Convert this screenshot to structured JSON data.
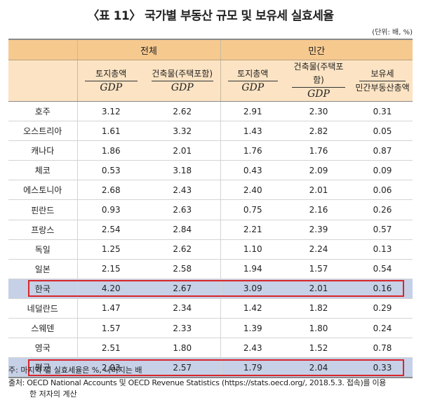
{
  "title": "〈표 11〉 국가별 부동산 규모 및 보유세 실효세율",
  "unit": "(단위: 배, %)",
  "header": {
    "group_total": "전체",
    "group_private": "민간",
    "col_land": "토지총액",
    "col_building": "건축물(주택포함)",
    "denominator": "GDP",
    "col_tax_top": "보유세",
    "col_tax_bottom": "민간부동산총액"
  },
  "rows": [
    {
      "country": "호주",
      "v": [
        "3.12",
        "2.62",
        "2.91",
        "2.30",
        "0.31"
      ]
    },
    {
      "country": "오스트리아",
      "v": [
        "1.61",
        "3.32",
        "1.43",
        "2.82",
        "0.05"
      ]
    },
    {
      "country": "캐나다",
      "v": [
        "1.86",
        "2.01",
        "1.76",
        "1.76",
        "0.87"
      ]
    },
    {
      "country": "체코",
      "v": [
        "0.53",
        "3.18",
        "0.43",
        "2.09",
        "0.09"
      ]
    },
    {
      "country": "에스토니아",
      "v": [
        "2.68",
        "2.43",
        "2.40",
        "2.01",
        "0.06"
      ]
    },
    {
      "country": "핀란드",
      "v": [
        "0.93",
        "2.63",
        "0.75",
        "2.16",
        "0.26"
      ]
    },
    {
      "country": "프랑스",
      "v": [
        "2.54",
        "2.84",
        "2.21",
        "2.39",
        "0.57"
      ]
    },
    {
      "country": "독일",
      "v": [
        "1.25",
        "2.62",
        "1.10",
        "2.24",
        "0.13"
      ]
    },
    {
      "country": "일본",
      "v": [
        "2.15",
        "2.58",
        "1.94",
        "1.57",
        "0.54"
      ]
    },
    {
      "country": "한국",
      "v": [
        "4.20",
        "2.67",
        "3.09",
        "2.01",
        "0.16"
      ]
    },
    {
      "country": "네덜란드",
      "v": [
        "1.47",
        "2.34",
        "1.42",
        "1.82",
        "0.29"
      ]
    },
    {
      "country": "스웨덴",
      "v": [
        "1.57",
        "2.33",
        "1.39",
        "1.80",
        "0.24"
      ]
    },
    {
      "country": "영국",
      "v": [
        "2.51",
        "1.80",
        "2.43",
        "1.52",
        "0.78"
      ]
    },
    {
      "country": "평균",
      "v": [
        "2.03",
        "2.57",
        "1.79",
        "2.04",
        "0.33"
      ]
    }
  ],
  "notes": {
    "note1": "주: 마지막 열 실효세율은 %, 나머지는 배",
    "source_line1": "출처: OECD National Accounts 및 OECD Revenue Statistics (https://stats.oecd.org/, 2018.5.3. 접속)를 이용",
    "source_line2": "한 저자의 계산"
  },
  "colors": {
    "header_dark": "#f6c98f",
    "header_light": "#fbe3c3",
    "highlight_row": "#c6d0e7",
    "highlight_border": "#d8262a"
  }
}
